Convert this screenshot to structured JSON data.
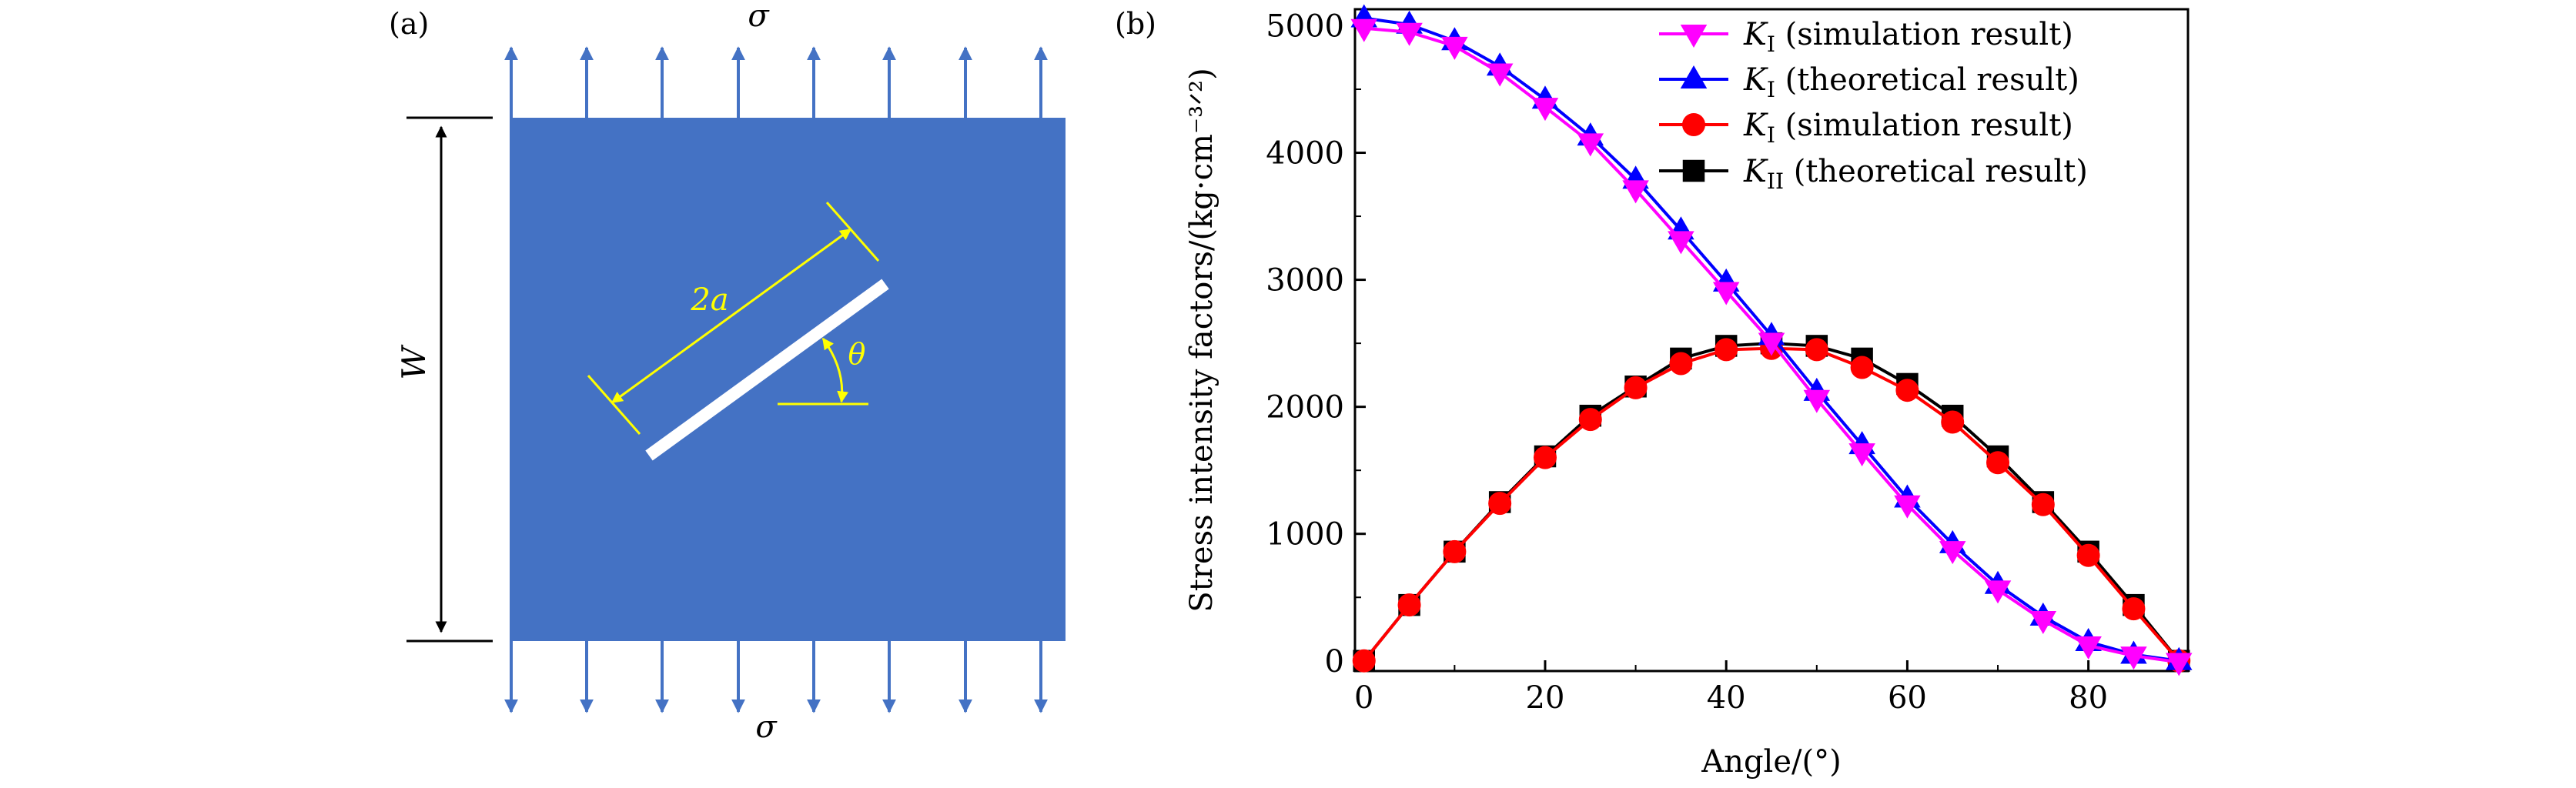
{
  "panel_a": {
    "label": "(a)",
    "stress_top": "σ",
    "stress_bottom": "σ",
    "width_label": "W",
    "crack_length_label": "2a",
    "angle_label": "θ",
    "colors": {
      "plate": "#4472C4",
      "arrows": "#4472C4",
      "crack": "#FFFFFF",
      "annotation": "#FFFF00",
      "dimension": "#000000"
    }
  },
  "panel_b": {
    "label": "(b)"
  },
  "chart_data": {
    "type": "line",
    "ylabel": "Stress intensity factors/(kg·cm⁻³ᐟ²)",
    "xlabel": "Angle/(°)",
    "xlim": [
      -1,
      91
    ],
    "ylim": [
      -80,
      5130
    ],
    "xticks": [
      0,
      20,
      40,
      60,
      80
    ],
    "yticks": [
      0,
      1000,
      2000,
      3000,
      4000,
      5000
    ],
    "grid": false,
    "legend_position": "top-right",
    "series": [
      {
        "name": "K_I (simulation result)",
        "legend_symbol": "K",
        "legend_subscript": "I",
        "legend_text": " (simulation result)",
        "color": "#FF00FF",
        "marker": "triangle-down",
        "x": [
          0,
          5,
          10,
          15,
          20,
          25,
          30,
          35,
          40,
          45,
          50,
          55,
          60,
          65,
          70,
          75,
          80,
          85,
          90
        ],
        "values": [
          4980,
          4950,
          4840,
          4630,
          4360,
          4080,
          3710,
          3310,
          2910,
          2510,
          2060,
          1640,
          1230,
          870,
          560,
          320,
          120,
          40,
          -10
        ]
      },
      {
        "name": "K_I (theoretical result)",
        "legend_symbol": "K",
        "legend_subscript": "I",
        "legend_text": " (theoretical result)",
        "color": "#0000FF",
        "marker": "triangle-up",
        "x": [
          0,
          5,
          10,
          15,
          20,
          25,
          30,
          35,
          40,
          45,
          50,
          55,
          60,
          65,
          70,
          75,
          80,
          85,
          90
        ],
        "values": [
          5060,
          5010,
          4880,
          4680,
          4420,
          4130,
          3790,
          3390,
          2980,
          2560,
          2120,
          1700,
          1280,
          920,
          600,
          350,
          150,
          50,
          0
        ]
      },
      {
        "name": "K_I (simulation result)",
        "legend_symbol": "K",
        "legend_subscript": "I",
        "legend_text": " (simulation result)",
        "color": "#FF0000",
        "marker": "circle",
        "x": [
          0,
          5,
          10,
          15,
          20,
          25,
          30,
          35,
          40,
          45,
          50,
          55,
          60,
          65,
          70,
          75,
          80,
          85,
          90
        ],
        "values": [
          0,
          440,
          860,
          1240,
          1600,
          1900,
          2150,
          2340,
          2450,
          2460,
          2450,
          2310,
          2130,
          1880,
          1560,
          1230,
          830,
          410,
          0
        ]
      },
      {
        "name": "K_II (theoretical result)",
        "legend_symbol": "K",
        "legend_subscript": "II",
        "legend_text": " (theoretical result)",
        "color": "#000000",
        "marker": "square",
        "x": [
          0,
          5,
          10,
          15,
          20,
          25,
          30,
          35,
          40,
          45,
          50,
          55,
          60,
          65,
          70,
          75,
          80,
          85,
          90
        ],
        "values": [
          0,
          440,
          860,
          1250,
          1610,
          1930,
          2160,
          2380,
          2480,
          2500,
          2480,
          2380,
          2180,
          1930,
          1610,
          1250,
          860,
          440,
          0
        ]
      }
    ]
  }
}
